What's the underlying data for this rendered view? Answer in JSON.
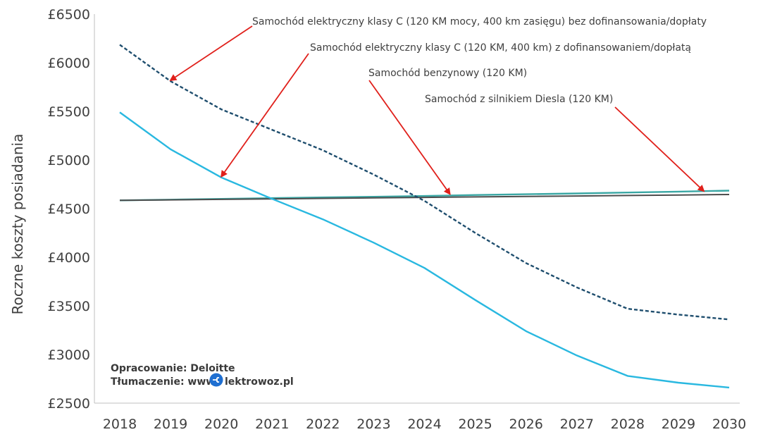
{
  "chart_data": {
    "type": "line",
    "title": "",
    "xlabel": "",
    "ylabel": "Roczne koszty posiadania",
    "categories": [
      "2018",
      "2019",
      "2020",
      "2021",
      "2022",
      "2023",
      "2024",
      "2025",
      "2026",
      "2027",
      "2028",
      "2029",
      "2030"
    ],
    "ylim": [
      2500,
      6500
    ],
    "yticks": [
      2500,
      3000,
      3500,
      4000,
      4500,
      5000,
      5500,
      6000,
      6500
    ],
    "ytick_labels": [
      "£2500",
      "£3000",
      "£3500",
      "£4000",
      "£4500",
      "£5000",
      "£5500",
      "£6000",
      "£6500"
    ],
    "grid": false,
    "legend": "none",
    "series": [
      {
        "name": "Samochód elektryczny klasy C (120 KM mocy, 400 km zasięgu) bez dofinansowania/dopłaty",
        "values": [
          6185,
          5810,
          5520,
          5310,
          5100,
          4850,
          4580,
          4250,
          3940,
          3690,
          3470,
          3410,
          3360
        ],
        "color": "#1f4e6e",
        "dash": "dashed"
      },
      {
        "name": "Samochód  elektryczny klasy C (120 KM, 400 km) z dofinansowaniem/dopłatą",
        "values": [
          5490,
          5110,
          4820,
          4600,
          4390,
          4150,
          3890,
          3560,
          3240,
          2990,
          2780,
          2710,
          2660
        ],
        "color": "#29b8e0",
        "dash": "solid"
      },
      {
        "name": "Samochód benzynowy (120 KM)",
        "values": [
          4585,
          4592,
          4600,
          4608,
          4615,
          4622,
          4630,
          4640,
          4648,
          4656,
          4665,
          4675,
          4685
        ],
        "color": "#3aa7a4",
        "dash": "solid"
      },
      {
        "name": "Samochód z silnikiem Diesla (120 KM)",
        "values": [
          4585,
          4590,
          4595,
          4600,
          4605,
          4610,
          4615,
          4620,
          4625,
          4630,
          4635,
          4640,
          4645
        ],
        "color": "#4d4d4d",
        "dash": "solid"
      }
    ],
    "annotations": [
      {
        "text": "Samochód elektryczny klasy C (120 KM mocy, 400 km zasięgu) bez dofinansowania/dopłaty",
        "arrow_to": {
          "x": "2019",
          "y": 5820
        }
      },
      {
        "text": "Samochód  elektryczny klasy C (120 KM, 400 km) z dofinansowaniem/dopłatą",
        "arrow_to": {
          "x": "2020",
          "y": 4830
        }
      },
      {
        "text": "Samochód benzynowy (120 KM)",
        "arrow_to": {
          "x": "2024.5",
          "y": 4650
        }
      },
      {
        "text": "Samochód z silnikiem Diesla (120 KM)",
        "arrow_to": {
          "x": "2029.5",
          "y": 4680
        }
      }
    ],
    "arrow_color": "#e0201b",
    "credits": {
      "line1": "Opracowanie: Deloitte",
      "line2_prefix": "Tłumaczenie: www.",
      "line2_suffix": "lektrowoz.pl"
    }
  }
}
